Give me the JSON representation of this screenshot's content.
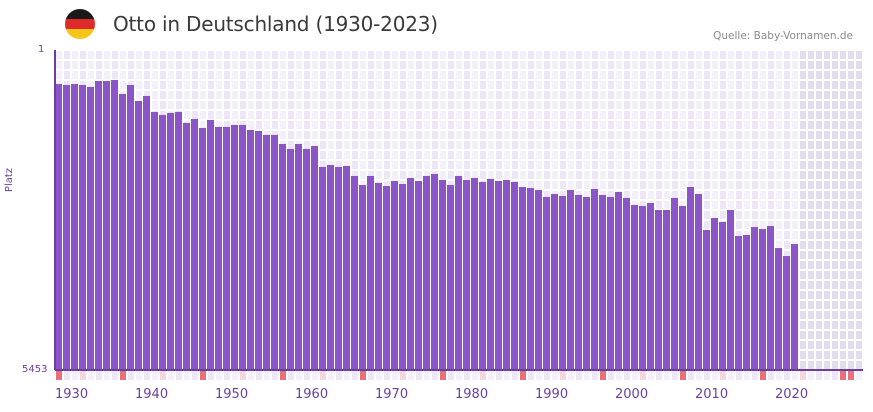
{
  "header": {
    "title": "Otto in Deutschland (1930-2023)",
    "source": "Quelle: Baby-Vornamen.de",
    "flag_colors": [
      "#1a1a1a",
      "#dd2a2a",
      "#f5c518"
    ]
  },
  "colors": {
    "bar": "#8b55c8",
    "axis": "#6b3fa0",
    "grid_bg_a": "#f3effb",
    "grid_bg_b": "#ece6f7",
    "future_bg": "#e2dced",
    "tick_strong": "#e8707a",
    "tick_light": "#f6d6dd"
  },
  "axis": {
    "y_top_label": "1",
    "y_bottom_label": "5453",
    "y_title": "Platz",
    "x_labels": [
      "1930",
      "1940",
      "1950",
      "1960",
      "1970",
      "1980",
      "1990",
      "2000",
      "2010",
      "2020"
    ]
  },
  "chart_data": {
    "type": "bar",
    "title": "Otto in Deutschland (1930-2023)",
    "xlabel": "",
    "ylabel": "Platz",
    "y_inverted": true,
    "ylim": [
      1,
      5453
    ],
    "xlim": [
      1930,
      2030
    ],
    "grid": true,
    "legend": "none",
    "annotations": [
      "Quelle: Baby-Vornamen.de"
    ],
    "categories": [
      1930,
      1931,
      1932,
      1933,
      1934,
      1935,
      1936,
      1937,
      1938,
      1939,
      1940,
      1941,
      1942,
      1943,
      1944,
      1945,
      1946,
      1947,
      1948,
      1949,
      1950,
      1951,
      1952,
      1953,
      1954,
      1955,
      1956,
      1957,
      1958,
      1959,
      1960,
      1961,
      1962,
      1963,
      1964,
      1965,
      1966,
      1967,
      1968,
      1969,
      1970,
      1971,
      1972,
      1973,
      1974,
      1975,
      1976,
      1977,
      1978,
      1979,
      1980,
      1981,
      1982,
      1983,
      1984,
      1985,
      1986,
      1987,
      1988,
      1989,
      1990,
      1991,
      1992,
      1993,
      1994,
      1995,
      1996,
      1997,
      1998,
      1999,
      2000,
      2001,
      2002,
      2003,
      2004,
      2005,
      2006,
      2007,
      2008,
      2009,
      2010,
      2011,
      2012,
      2013,
      2014,
      2015,
      2016,
      2017,
      2018,
      2019,
      2020,
      2021,
      2022
    ],
    "values": [
      580,
      597,
      580,
      597,
      631,
      529,
      529,
      512,
      750,
      597,
      869,
      784,
      1056,
      1107,
      1073,
      1056,
      1244,
      1176,
      1329,
      1193,
      1312,
      1312,
      1278,
      1278,
      1363,
      1380,
      1448,
      1448,
      1602,
      1687,
      1602,
      1687,
      1636,
      1994,
      1960,
      1994,
      1977,
      2147,
      2301,
      2147,
      2266,
      2318,
      2232,
      2284,
      2181,
      2232,
      2147,
      2113,
      2215,
      2301,
      2147,
      2215,
      2181,
      2249,
      2198,
      2232,
      2215,
      2249,
      2335,
      2352,
      2386,
      2505,
      2454,
      2488,
      2386,
      2471,
      2505,
      2369,
      2471,
      2505,
      2420,
      2522,
      2641,
      2659,
      2607,
      2727,
      2727,
      2522,
      2659,
      2335,
      2454,
      3068,
      2863,
      2931,
      2727,
      3170,
      3153,
      3017,
      3051,
      3000,
      3375,
      3511,
      3307
    ]
  }
}
